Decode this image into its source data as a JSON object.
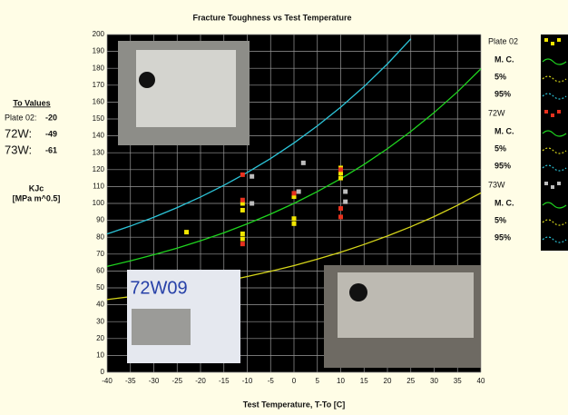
{
  "chart_data": {
    "type": "scatter",
    "title": "Fracture Toughness vs Test Temperature",
    "x_label": "Test Temperature, T-To [C]",
    "y_label": [
      "KJc",
      "[MPa m^0.5]"
    ],
    "to_values": {
      "title": "To Values",
      "rows": [
        {
          "label": "Plate 02:",
          "value": -20
        },
        {
          "label": "72W:",
          "value": -49
        },
        {
          "label": "73W:",
          "value": -61
        }
      ]
    },
    "photo_label": "72W09",
    "xlim": [
      -40,
      40
    ],
    "ylim": [
      0,
      200
    ],
    "xticks": [
      -40,
      -35,
      -30,
      -25,
      -20,
      -15,
      -10,
      -5,
      0,
      5,
      10,
      15,
      20,
      25,
      30,
      35,
      40
    ],
    "yticks": [
      0,
      10,
      20,
      30,
      40,
      50,
      60,
      70,
      80,
      90,
      100,
      110,
      120,
      130,
      140,
      150,
      160,
      170,
      180,
      190,
      200
    ],
    "grid": true,
    "series": [
      {
        "name": "Plate 02",
        "color": "#f2e600",
        "x": [
          -23,
          -11,
          -11,
          -11,
          -11,
          0,
          0,
          0,
          10,
          10,
          10
        ],
        "values": [
          83,
          96,
          100,
          79,
          82,
          88,
          91,
          104,
          115,
          118,
          121
        ]
      },
      {
        "name": "72W",
        "color": "#e8321e",
        "x": [
          -11,
          -11,
          -11,
          0,
          10,
          10,
          10
        ],
        "values": [
          117,
          102,
          76,
          106,
          92,
          97,
          120
        ]
      },
      {
        "name": "73W",
        "color": "#bdbdbd",
        "x": [
          -9,
          -9,
          2,
          1,
          11,
          11
        ],
        "values": [
          116,
          100,
          124,
          107,
          107,
          101
        ]
      }
    ],
    "curve_x": [
      -40,
      -35,
      -30,
      -25,
      -20,
      -15,
      -10,
      -5,
      0,
      5,
      10,
      15,
      20,
      25,
      30,
      35,
      40
    ],
    "curves": [
      {
        "name": "M. C.",
        "color": "#1fd41f",
        "values": [
          62.7,
          66.0,
          69.6,
          73.5,
          77.9,
          82.6,
          87.9,
          93.7,
          100,
          107.0,
          114.6,
          123.1,
          132.4,
          142.6,
          153.8,
          166.1,
          179.7
        ]
      },
      {
        "name": "5%",
        "color": "#d6d61a",
        "values": [
          43.1,
          44.8,
          46.8,
          48.9,
          51.3,
          53.8,
          56.7,
          59.8,
          63.2,
          67.0,
          71.1,
          75.7,
          80.7,
          86.2,
          92.2,
          98.9,
          106.2
        ]
      },
      {
        "name": "95%",
        "color": "#2cc4d8",
        "values": [
          81.9,
          86.6,
          91.8,
          97.5,
          103.8,
          110.7,
          118.3,
          126.6,
          135.8,
          145.9,
          157.0,
          169.2,
          182.6,
          197.4,
          null,
          null,
          null
        ]
      }
    ],
    "legend": [
      {
        "name": "Plate 02",
        "entries": [
          "M. C.",
          "5%",
          "95%"
        ]
      },
      {
        "name": "72W",
        "entries": [
          "M. C.",
          "5%",
          "95%"
        ]
      },
      {
        "name": "73W",
        "entries": [
          "M. C.",
          "5%",
          "95%"
        ]
      }
    ]
  }
}
